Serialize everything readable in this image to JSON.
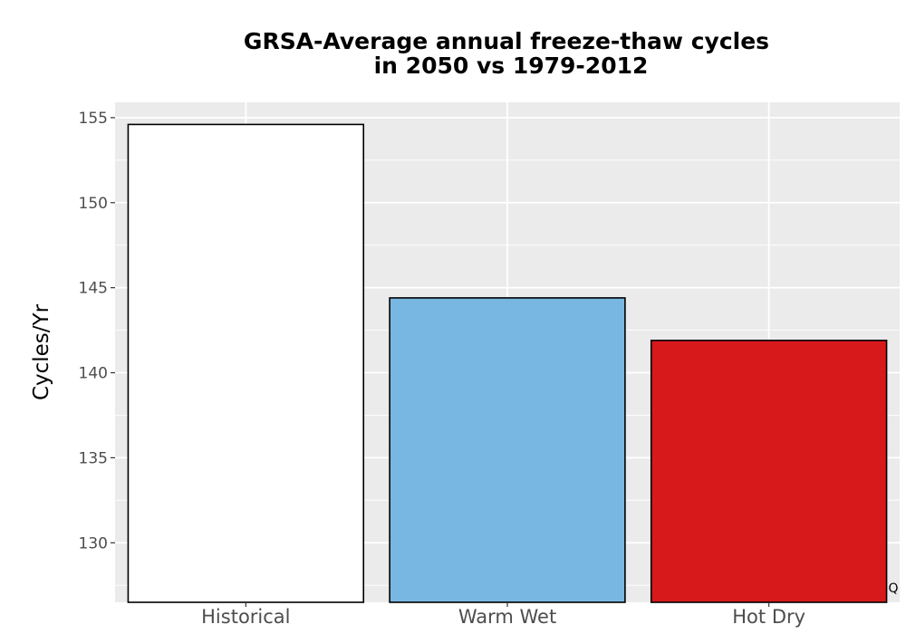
{
  "chart_data": {
    "type": "bar",
    "title_lines": [
      "GRSA-Average annual freeze-thaw cycles",
      "in 2050 vs 1979-2012"
    ],
    "xlabel": "",
    "ylabel": "Cycles/Yr",
    "categories": [
      "Historical",
      "Warm Wet",
      "Hot Dry"
    ],
    "values": [
      154.6,
      144.4,
      141.9
    ],
    "colors": [
      "#ffffff",
      "#78b7e1",
      "#d7191c"
    ],
    "ylim": [
      126.5,
      155.9
    ],
    "yticks": [
      130,
      135,
      140,
      145,
      150,
      155
    ],
    "grid": true,
    "panel_background": "#ebebeb",
    "gridline_color": "#ffffff",
    "bar_outline_color": "#000000",
    "corner_mark": "Q"
  }
}
